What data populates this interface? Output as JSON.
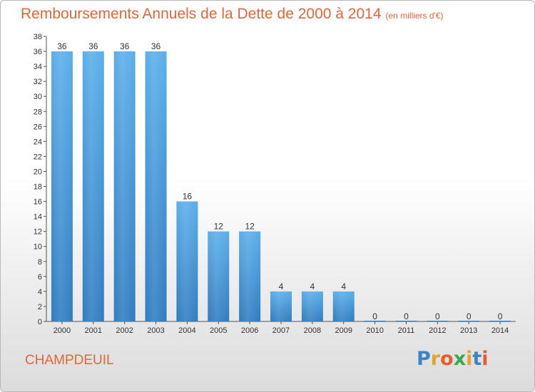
{
  "header": {
    "title": "Remboursements Annuels de la Dette de 2000 à 2014",
    "subtitle": "(en milliers d'€)"
  },
  "footer": {
    "commune": "CHAMPDEUIL",
    "logo_letters": [
      "P",
      "r",
      "o",
      "x",
      "i",
      "t",
      "i"
    ],
    "logo_colors": [
      "#3a84c8",
      "#e6a22c",
      "#e65c2c",
      "#3aa84c",
      "#e6a22c",
      "#3a84c8",
      "#e65c2c"
    ]
  },
  "chart_data": {
    "type": "bar",
    "categories": [
      "2000",
      "2001",
      "2002",
      "2003",
      "2004",
      "2005",
      "2006",
      "2007",
      "2008",
      "2009",
      "2010",
      "2011",
      "2012",
      "2013",
      "2014"
    ],
    "values": [
      36,
      36,
      36,
      36,
      16,
      12,
      12,
      4,
      4,
      4,
      0,
      0,
      0,
      0,
      0
    ],
    "ylim": [
      0,
      38
    ],
    "yticks": [
      0,
      2,
      4,
      6,
      8,
      10,
      12,
      14,
      16,
      18,
      20,
      22,
      24,
      26,
      28,
      30,
      32,
      34,
      36,
      38
    ],
    "grid": false,
    "bar_color_top": "#5aaeea",
    "bar_color_bottom": "#2f7cc0",
    "xlabel": "",
    "ylabel": ""
  }
}
